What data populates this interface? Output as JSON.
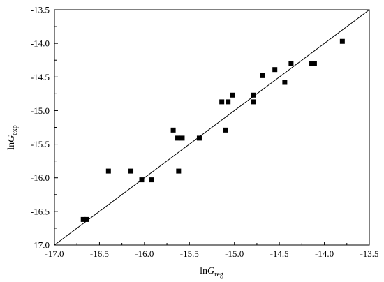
{
  "chart_data": {
    "type": "scatter",
    "xlabel": {
      "main": "ln",
      "var": "G",
      "sub": "reg"
    },
    "ylabel": {
      "main": "ln",
      "var": "G",
      "sub": "exp"
    },
    "xlim": [
      -17.0,
      -13.5
    ],
    "ylim": [
      -17.0,
      -13.5
    ],
    "xticks": [
      "-17.0",
      "-16.5",
      "-16.0",
      "-15.5",
      "-15.0",
      "-14.5",
      "-14.0",
      "-13.5"
    ],
    "xtick_values": [
      -17.0,
      -16.5,
      -16.0,
      -15.5,
      -15.0,
      -14.5,
      -14.0,
      -13.5
    ],
    "yticks": [
      "-17.0",
      "-16.5",
      "-16.0",
      "-15.5",
      "-15.0",
      "-14.5",
      "-14.0",
      "-13.5"
    ],
    "ytick_values": [
      -17.0,
      -16.5,
      -16.0,
      -15.5,
      -15.0,
      -14.5,
      -14.0,
      -13.5
    ],
    "grid": false,
    "legend": "none",
    "reference_line": {
      "x": [
        -17.0,
        -13.5
      ],
      "y": [
        -17.0,
        -13.5
      ]
    },
    "marker": "square",
    "marker_color": "#000000",
    "points": [
      {
        "x": -16.68,
        "y": -16.62
      },
      {
        "x": -16.64,
        "y": -16.62
      },
      {
        "x": -16.4,
        "y": -15.9
      },
      {
        "x": -16.15,
        "y": -15.9
      },
      {
        "x": -16.03,
        "y": -16.03
      },
      {
        "x": -15.92,
        "y": -16.03
      },
      {
        "x": -15.68,
        "y": -15.29
      },
      {
        "x": -15.63,
        "y": -15.41
      },
      {
        "x": -15.62,
        "y": -15.9
      },
      {
        "x": -15.58,
        "y": -15.41
      },
      {
        "x": -15.39,
        "y": -15.41
      },
      {
        "x": -15.14,
        "y": -14.87
      },
      {
        "x": -15.1,
        "y": -15.29
      },
      {
        "x": -15.07,
        "y": -14.87
      },
      {
        "x": -15.02,
        "y": -14.77
      },
      {
        "x": -14.79,
        "y": -14.87
      },
      {
        "x": -14.79,
        "y": -14.77
      },
      {
        "x": -14.69,
        "y": -14.48
      },
      {
        "x": -14.55,
        "y": -14.39
      },
      {
        "x": -14.44,
        "y": -14.58
      },
      {
        "x": -14.37,
        "y": -14.3
      },
      {
        "x": -14.14,
        "y": -14.3
      },
      {
        "x": -14.11,
        "y": -14.3
      },
      {
        "x": -13.8,
        "y": -13.97
      }
    ]
  }
}
